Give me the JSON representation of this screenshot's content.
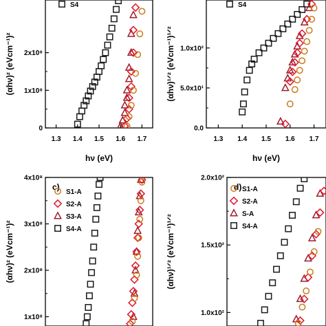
{
  "colors": {
    "S1": "#cc7a1a",
    "S2": "#e0142a",
    "S3": "#9b1c2c",
    "S4": "#1a1a1a"
  },
  "chart_data": [
    {
      "id": "a",
      "type": "scatter",
      "panel_label": "",
      "ylabel": "(αhν)² (eVcm⁻¹)²",
      "xlabel": "hν (eV)",
      "xlim": [
        1.25,
        1.75
      ],
      "ylim": [
        0,
        340000000.0
      ],
      "xticks": [
        1.3,
        1.4,
        1.5,
        1.6,
        1.7
      ],
      "xtick_labels": [
        "1.3",
        "1.4",
        "1.5",
        "1.6",
        "1.7"
      ],
      "yticks": [
        0,
        100000000.0,
        200000000.0
      ],
      "ytick_labels": [
        "0",
        "1x10⁸",
        "2x10⁸"
      ],
      "legend": [
        "S4"
      ],
      "series": [
        {
          "name": "S4",
          "marker": "square",
          "color_key": "S4",
          "x": [
            1.4,
            1.41,
            1.42,
            1.43,
            1.44,
            1.45,
            1.46,
            1.47,
            1.48,
            1.49,
            1.5,
            1.51,
            1.52,
            1.53,
            1.54,
            1.55,
            1.56,
            1.57,
            1.58,
            1.59
          ],
          "y": [
            10000000.0,
            30000000.0,
            45000000.0,
            60000000.0,
            72000000.0,
            85000000.0,
            98000000.0,
            110000000.0,
            122000000.0,
            135000000.0,
            150000000.0,
            165000000.0,
            182000000.0,
            200000000.0,
            220000000.0,
            242000000.0,
            265000000.0,
            290000000.0,
            315000000.0,
            338000000.0
          ]
        },
        {
          "name": "S3",
          "marker": "triangle",
          "color_key": "S3",
          "x": [
            1.6,
            1.61,
            1.62,
            1.62,
            1.63,
            1.63,
            1.64,
            1.64,
            1.65,
            1.65,
            1.66
          ],
          "y": [
            5000000.0,
            20000000.0,
            40000000.0,
            60000000.0,
            80000000.0,
            100000000.0,
            130000000.0,
            160000000.0,
            200000000.0,
            250000000.0,
            300000000.0
          ]
        },
        {
          "name": "S2",
          "marker": "diamond",
          "color_key": "S2",
          "x": [
            1.62,
            1.63,
            1.64,
            1.64,
            1.65,
            1.65,
            1.66,
            1.66,
            1.67
          ],
          "y": [
            5000000.0,
            25000000.0,
            50000000.0,
            80000000.0,
            110000000.0,
            150000000.0,
            200000000.0,
            260000000.0,
            320000000.0
          ]
        },
        {
          "name": "S1",
          "marker": "circle",
          "color_key": "S1",
          "x": [
            1.63,
            1.64,
            1.65,
            1.66,
            1.67,
            1.68,
            1.69,
            1.7
          ],
          "y": [
            5000000.0,
            30000000.0,
            60000000.0,
            100000000.0,
            145000000.0,
            195000000.0,
            250000000.0,
            310000000.0
          ]
        }
      ]
    },
    {
      "id": "b",
      "type": "scatter",
      "panel_label": "",
      "ylabel": "(αhν)¹ᐟ² (eVcm⁻¹)¹ᐟ²",
      "xlabel": "hν (eV)",
      "xlim": [
        1.25,
        1.75
      ],
      "ylim": [
        0,
        160
      ],
      "xticks": [
        1.3,
        1.4,
        1.5,
        1.6,
        1.7
      ],
      "xtick_labels": [
        "1.3",
        "1.4",
        "1.5",
        "1.6",
        "1.7"
      ],
      "yticks": [
        0,
        50,
        100
      ],
      "ytick_labels": [
        "0.0",
        "5.0x10¹",
        "1.0x10²"
      ],
      "legend": [
        "S4"
      ],
      "series": [
        {
          "name": "S4",
          "marker": "square",
          "color_key": "S4",
          "x": [
            1.4,
            1.405,
            1.41,
            1.42,
            1.43,
            1.44,
            1.45,
            1.47,
            1.49,
            1.51,
            1.53,
            1.55,
            1.57,
            1.59,
            1.61,
            1.63,
            1.65,
            1.67
          ],
          "y": [
            20,
            30,
            45,
            60,
            72,
            80,
            86,
            94,
            100,
            106,
            112,
            118,
            124,
            130,
            136,
            142,
            148,
            155
          ]
        },
        {
          "name": "S3",
          "marker": "triangle",
          "color_key": "S3",
          "x": [
            1.56,
            1.58,
            1.59,
            1.6,
            1.61,
            1.62,
            1.63,
            1.64,
            1.66,
            1.68
          ],
          "y": [
            8,
            50,
            62,
            72,
            82,
            92,
            102,
            115,
            132,
            150
          ]
        },
        {
          "name": "S2",
          "marker": "diamond",
          "color_key": "S2",
          "x": [
            1.58,
            1.6,
            1.61,
            1.62,
            1.63,
            1.64,
            1.65,
            1.67,
            1.69
          ],
          "y": [
            5,
            58,
            70,
            82,
            94,
            106,
            118,
            136,
            155
          ]
        },
        {
          "name": "S1",
          "marker": "circle",
          "color_key": "S1",
          "x": [
            1.6,
            1.62,
            1.63,
            1.64,
            1.65,
            1.66,
            1.67,
            1.68,
            1.69,
            1.7
          ],
          "y": [
            30,
            48,
            60,
            72,
            84,
            96,
            108,
            122,
            136,
            150
          ]
        }
      ]
    },
    {
      "id": "c",
      "type": "scatter",
      "panel_label": "c)",
      "ylabel": "(αhν)² (eVcm⁻¹)²",
      "xlabel": "",
      "xlim": [
        1.25,
        1.75
      ],
      "ylim": [
        80000000.0,
        400000000.0
      ],
      "xticks": [],
      "xtick_labels": [],
      "yticks": [
        100000000.0,
        200000000.0,
        300000000.0,
        400000000.0
      ],
      "ytick_labels": [
        "1x10⁸",
        "2x10⁸",
        "3x10⁸",
        "4x10⁸"
      ],
      "legend": [
        "S1-A",
        "S2-A",
        "S3-A",
        "S4-A"
      ],
      "series": [
        {
          "name": "S4-A",
          "marker": "square",
          "color_key": "S4",
          "x": [
            1.44,
            1.445,
            1.45,
            1.455,
            1.46,
            1.465,
            1.47,
            1.475,
            1.48,
            1.485,
            1.49,
            1.495,
            1.5,
            1.505
          ],
          "y": [
            85000000.0,
            100000000.0,
            120000000.0,
            145000000.0,
            170000000.0,
            195000000.0,
            220000000.0,
            250000000.0,
            280000000.0,
            310000000.0,
            335000000.0,
            360000000.0,
            385000000.0,
            400000000.0
          ]
        },
        {
          "name": "S3-A",
          "marker": "triangle",
          "color_key": "S3",
          "x": [
            1.66,
            1.665,
            1.67,
            1.675,
            1.68,
            1.685,
            1.69,
            1.695
          ],
          "y": [
            100000000.0,
            150000000.0,
            200000000.0,
            240000000.0,
            285000000.0,
            325000000.0,
            360000000.0,
            395000000.0
          ]
        },
        {
          "name": "S2-A",
          "marker": "diamond",
          "color_key": "S2",
          "x": [
            1.645,
            1.65,
            1.655,
            1.66,
            1.665,
            1.67,
            1.675,
            1.68,
            1.685,
            1.69,
            1.695,
            1.7
          ],
          "y": [
            85000000.0,
            105000000.0,
            130000000.0,
            155000000.0,
            180000000.0,
            210000000.0,
            240000000.0,
            270000000.0,
            300000000.0,
            330000000.0,
            365000000.0,
            395000000.0
          ]
        },
        {
          "name": "S1-A",
          "marker": "circle",
          "color_key": "S1",
          "x": [
            1.655,
            1.665,
            1.675,
            1.68,
            1.685,
            1.69,
            1.695,
            1.7
          ],
          "y": [
            90000000.0,
            140000000.0,
            190000000.0,
            230000000.0,
            270000000.0,
            310000000.0,
            350000000.0,
            390000000.0
          ]
        }
      ]
    },
    {
      "id": "d",
      "type": "scatter",
      "panel_label": "d)",
      "ylabel": "(αhν)¹ᐟ² (eVcm⁻¹)¹ᐟ²",
      "xlabel": "",
      "xlim": [
        1.25,
        1.75
      ],
      "ylim": [
        90,
        200
      ],
      "xticks": [],
      "xtick_labels": [],
      "yticks": [
        100,
        150,
        200
      ],
      "ytick_labels": [
        "1.0x10²",
        "1.5x10²",
        "2.0x10²"
      ],
      "legend": [
        "S1-A",
        "S2-A",
        "S-A",
        "S4-A"
      ],
      "series": [
        {
          "name": "S4-A",
          "marker": "square",
          "color_key": "S4",
          "x": [
            1.42,
            1.44,
            1.46,
            1.48,
            1.5,
            1.52,
            1.54,
            1.56,
            1.58,
            1.6,
            1.62,
            1.64
          ],
          "y": [
            92,
            102,
            112,
            122,
            132,
            142,
            152,
            162,
            172,
            182,
            192,
            199
          ]
        },
        {
          "name": "S-A",
          "marker": "triangle",
          "color_key": "S3",
          "x": [
            1.6,
            1.62,
            1.64,
            1.66,
            1.68,
            1.7,
            1.72
          ],
          "y": [
            95,
            110,
            125,
            140,
            155,
            172,
            188
          ]
        },
        {
          "name": "S2-A",
          "marker": "diamond",
          "color_key": "S2",
          "x": [
            1.62,
            1.64,
            1.66,
            1.68,
            1.7,
            1.72,
            1.74
          ],
          "y": [
            94,
            110,
            126,
            142,
            158,
            174,
            190
          ]
        },
        {
          "name": "S1-A",
          "marker": "circle",
          "color_key": "S1",
          "x": [
            1.61,
            1.63,
            1.65,
            1.67,
            1.69,
            1.71
          ],
          "y": [
            92,
            104,
            116,
            130,
            145,
            160
          ]
        }
      ]
    }
  ]
}
